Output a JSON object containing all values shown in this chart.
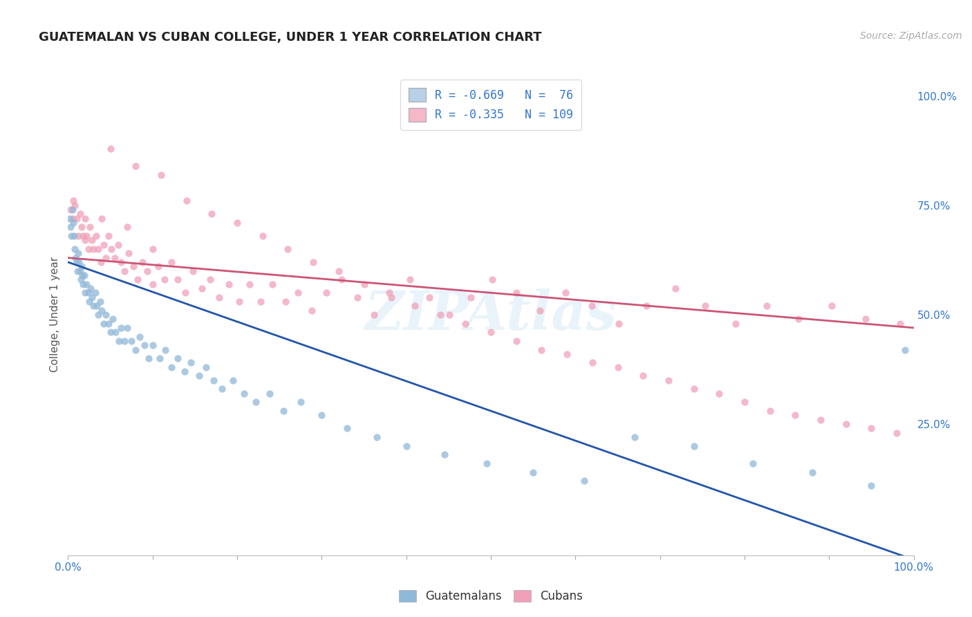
{
  "title": "GUATEMALAN VS CUBAN COLLEGE, UNDER 1 YEAR CORRELATION CHART",
  "source": "Source: ZipAtlas.com",
  "ylabel": "College, Under 1 year",
  "right_ytick_vals": [
    1.0,
    0.75,
    0.5,
    0.25
  ],
  "legend_label_blue": "R = -0.669   N =  76",
  "legend_label_pink": "R = -0.335   N = 109",
  "scatter_color_blue": "#90b8d8",
  "scatter_color_pink": "#f0a0b8",
  "line_color_blue": "#2255aa",
  "line_color_pink": "#cc5577",
  "legend_box_color_blue": "#b8d0e8",
  "legend_box_color_pink": "#f4b8c8",
  "background_color": "#ffffff",
  "grid_color": "#cccccc",
  "title_color": "#222222",
  "axis_label_color": "#3377cc",
  "watermark": "ZIPAtlas",
  "xlim": [
    0.0,
    1.0
  ],
  "ylim": [
    -0.05,
    1.05
  ],
  "blue_line_x0": 0.0,
  "blue_line_y0": 0.62,
  "blue_line_x1": 1.0,
  "blue_line_y1": -0.06,
  "pink_line_x0": 0.0,
  "pink_line_y0": 0.63,
  "pink_line_x1": 1.0,
  "pink_line_y1": 0.47,
  "guatemalan_x": [
    0.002,
    0.003,
    0.004,
    0.005,
    0.006,
    0.007,
    0.008,
    0.009,
    0.01,
    0.011,
    0.012,
    0.013,
    0.014,
    0.015,
    0.016,
    0.017,
    0.018,
    0.019,
    0.02,
    0.022,
    0.024,
    0.025,
    0.027,
    0.028,
    0.03,
    0.032,
    0.034,
    0.036,
    0.038,
    0.04,
    0.042,
    0.045,
    0.048,
    0.05,
    0.053,
    0.056,
    0.06,
    0.063,
    0.067,
    0.07,
    0.075,
    0.08,
    0.085,
    0.09,
    0.095,
    0.1,
    0.108,
    0.115,
    0.122,
    0.13,
    0.138,
    0.145,
    0.155,
    0.163,
    0.172,
    0.182,
    0.195,
    0.208,
    0.222,
    0.238,
    0.255,
    0.275,
    0.3,
    0.33,
    0.365,
    0.4,
    0.445,
    0.495,
    0.55,
    0.61,
    0.67,
    0.74,
    0.81,
    0.88,
    0.95,
    0.99
  ],
  "guatemalan_y": [
    0.72,
    0.7,
    0.68,
    0.74,
    0.71,
    0.68,
    0.65,
    0.63,
    0.62,
    0.6,
    0.64,
    0.62,
    0.6,
    0.58,
    0.61,
    0.59,
    0.57,
    0.59,
    0.55,
    0.57,
    0.55,
    0.53,
    0.56,
    0.54,
    0.52,
    0.55,
    0.52,
    0.5,
    0.53,
    0.51,
    0.48,
    0.5,
    0.48,
    0.46,
    0.49,
    0.46,
    0.44,
    0.47,
    0.44,
    0.47,
    0.44,
    0.42,
    0.45,
    0.43,
    0.4,
    0.43,
    0.4,
    0.42,
    0.38,
    0.4,
    0.37,
    0.39,
    0.36,
    0.38,
    0.35,
    0.33,
    0.35,
    0.32,
    0.3,
    0.32,
    0.28,
    0.3,
    0.27,
    0.24,
    0.22,
    0.2,
    0.18,
    0.16,
    0.14,
    0.12,
    0.22,
    0.2,
    0.16,
    0.14,
    0.11,
    0.42
  ],
  "cuban_x": [
    0.003,
    0.005,
    0.006,
    0.008,
    0.01,
    0.012,
    0.014,
    0.016,
    0.018,
    0.02,
    0.022,
    0.024,
    0.026,
    0.028,
    0.03,
    0.033,
    0.036,
    0.039,
    0.042,
    0.045,
    0.048,
    0.051,
    0.055,
    0.059,
    0.063,
    0.067,
    0.072,
    0.077,
    0.082,
    0.088,
    0.094,
    0.1,
    0.107,
    0.114,
    0.122,
    0.13,
    0.139,
    0.148,
    0.158,
    0.168,
    0.179,
    0.19,
    0.202,
    0.215,
    0.228,
    0.242,
    0.257,
    0.272,
    0.288,
    0.305,
    0.323,
    0.342,
    0.362,
    0.382,
    0.404,
    0.427,
    0.451,
    0.476,
    0.502,
    0.53,
    0.558,
    0.588,
    0.619,
    0.651,
    0.684,
    0.718,
    0.753,
    0.789,
    0.826,
    0.864,
    0.903,
    0.943,
    0.984,
    0.05,
    0.08,
    0.11,
    0.14,
    0.17,
    0.2,
    0.23,
    0.26,
    0.29,
    0.32,
    0.35,
    0.38,
    0.41,
    0.44,
    0.47,
    0.5,
    0.53,
    0.56,
    0.59,
    0.62,
    0.65,
    0.68,
    0.71,
    0.74,
    0.77,
    0.8,
    0.83,
    0.86,
    0.89,
    0.92,
    0.95,
    0.98,
    0.02,
    0.04,
    0.07,
    0.1
  ],
  "cuban_y": [
    0.74,
    0.72,
    0.76,
    0.75,
    0.72,
    0.68,
    0.73,
    0.7,
    0.68,
    0.72,
    0.68,
    0.65,
    0.7,
    0.67,
    0.65,
    0.68,
    0.65,
    0.62,
    0.66,
    0.63,
    0.68,
    0.65,
    0.63,
    0.66,
    0.62,
    0.6,
    0.64,
    0.61,
    0.58,
    0.62,
    0.6,
    0.57,
    0.61,
    0.58,
    0.62,
    0.58,
    0.55,
    0.6,
    0.56,
    0.58,
    0.54,
    0.57,
    0.53,
    0.57,
    0.53,
    0.57,
    0.53,
    0.55,
    0.51,
    0.55,
    0.58,
    0.54,
    0.5,
    0.54,
    0.58,
    0.54,
    0.5,
    0.54,
    0.58,
    0.55,
    0.51,
    0.55,
    0.52,
    0.48,
    0.52,
    0.56,
    0.52,
    0.48,
    0.52,
    0.49,
    0.52,
    0.49,
    0.48,
    0.88,
    0.84,
    0.82,
    0.76,
    0.73,
    0.71,
    0.68,
    0.65,
    0.62,
    0.6,
    0.57,
    0.55,
    0.52,
    0.5,
    0.48,
    0.46,
    0.44,
    0.42,
    0.41,
    0.39,
    0.38,
    0.36,
    0.35,
    0.33,
    0.32,
    0.3,
    0.28,
    0.27,
    0.26,
    0.25,
    0.24,
    0.23,
    0.67,
    0.72,
    0.7,
    0.65
  ]
}
